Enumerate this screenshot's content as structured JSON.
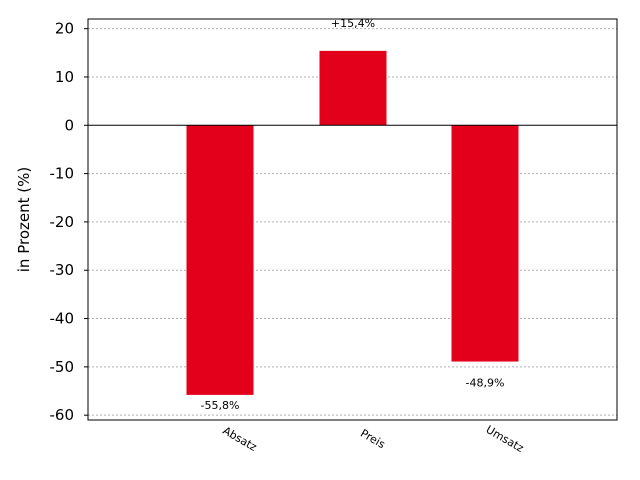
{
  "chart_data": {
    "type": "bar",
    "categories": [
      "Absatz",
      "Preis",
      "Umsatz"
    ],
    "values": [
      -55.8,
      15.4,
      -48.9
    ],
    "data_labels": [
      "-55,8%",
      "+15,4%",
      "-48,9%"
    ],
    "title": "",
    "xlabel": "",
    "ylabel": "in Prozent (%)",
    "ylim": [
      -61,
      22
    ],
    "yticks": [
      20,
      10,
      0,
      -10,
      -20,
      -30,
      -40,
      -50,
      -60
    ],
    "grid": true,
    "bar_color": "#e2001a",
    "zero_line": true
  }
}
